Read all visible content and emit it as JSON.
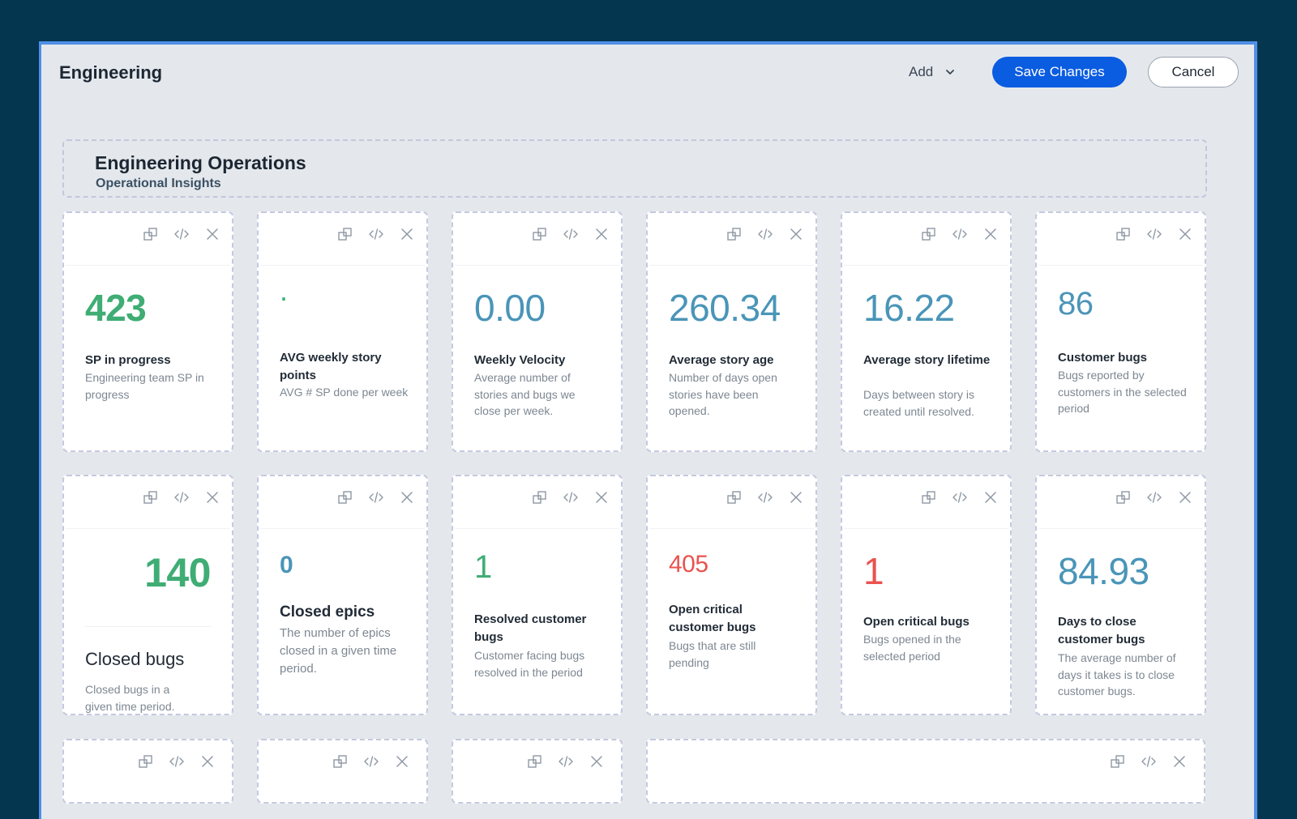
{
  "header": {
    "title": "Engineering",
    "add_label": "Add",
    "save_label": "Save Changes",
    "cancel_label": "Cancel"
  },
  "section": {
    "title": "Engineering Operations",
    "subtitle": "Operational Insights"
  },
  "cards": [
    {
      "value": "423",
      "label": "SP in progress",
      "description": "Engineering team SP in progress",
      "value_color": "#3fad74"
    },
    {
      "value": ".",
      "label": "AVG weekly story points",
      "description": "AVG # SP done per week",
      "value_color": "#3fad74"
    },
    {
      "value": "0.00",
      "label": "Weekly Velocity",
      "description": "Average number of stories and bugs we close per week.",
      "value_color": "#4a95b8"
    },
    {
      "value": "260.34",
      "label": "Average story age",
      "description": "Number of days open stories have been opened.",
      "value_color": "#4a95b8"
    },
    {
      "value": "16.22",
      "label": "Average story lifetime",
      "description": "Days between story is created until resolved.",
      "value_color": "#4a95b8"
    },
    {
      "value": "86",
      "label": "Customer bugs",
      "description": "Bugs reported by customers in the selected period",
      "value_color": "#4a95b8"
    },
    {
      "value": "140",
      "label": "Closed bugs",
      "description": "Closed bugs in a given time period.",
      "value_color": "#3fad74"
    },
    {
      "value": "0",
      "label": "Closed epics",
      "description": "The number of epics closed in a given time period.",
      "value_color": "#4a95b8"
    },
    {
      "value": "1",
      "label": "Resolved customer bugs",
      "description": "Customer facing bugs resolved in the period",
      "value_color": "#3fad74"
    },
    {
      "value": "405",
      "label": "Open critical customer bugs",
      "description": "Bugs that are still pending",
      "value_color": "#e9534f"
    },
    {
      "value": "1",
      "label": "Open critical bugs",
      "description": "Bugs opened in the selected period",
      "value_color": "#e9534f"
    },
    {
      "value": "84.93",
      "label": "Days to close customer bugs",
      "description": "The average number of days it takes is to close customer bugs.",
      "value_color": "#4a95b8"
    }
  ],
  "icons": {
    "duplicate": "duplicate-icon",
    "embed": "code-icon",
    "remove": "close-icon",
    "dropdown": "chevron-down-icon"
  }
}
